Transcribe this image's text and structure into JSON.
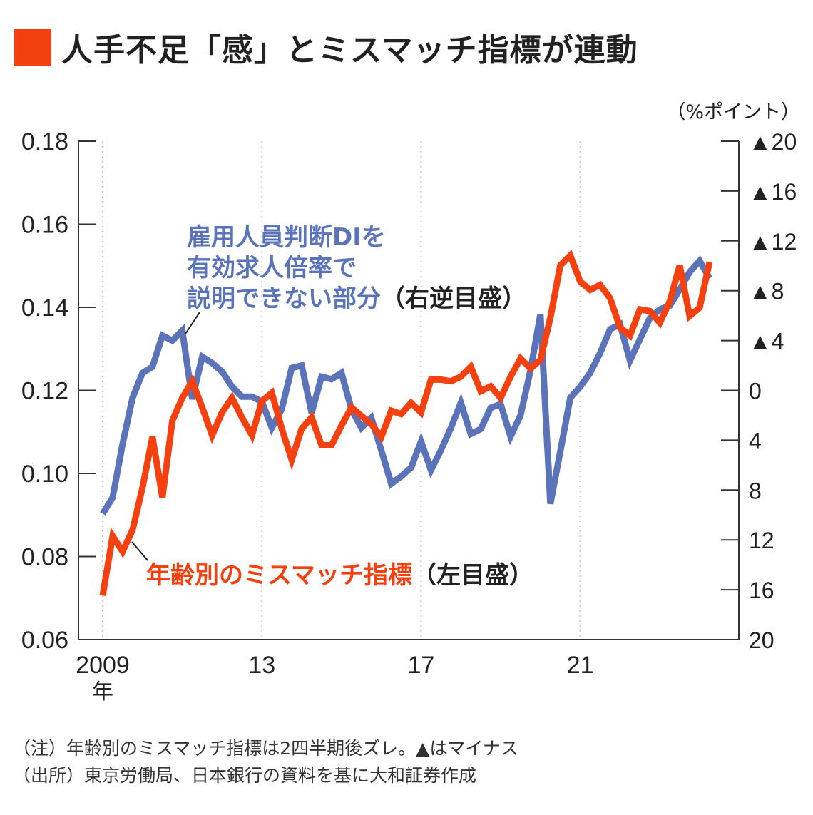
{
  "title": "人手不足「感」とミスマッチ指標が連動",
  "accent_color": "#f2400f",
  "chart_data": {
    "type": "line",
    "title": "人手不足「感」とミスマッチ指標が連動",
    "x_start": 2009,
    "x_step": 0.25,
    "xticks": [
      {
        "value": 2009,
        "label": "2009",
        "sub": "年"
      },
      {
        "value": 2013,
        "label": "13"
      },
      {
        "value": 2017,
        "label": "17"
      },
      {
        "value": 2021,
        "label": "21"
      }
    ],
    "left_axis": {
      "range": [
        0.06,
        0.18
      ],
      "ticks": [
        0.06,
        0.08,
        0.1,
        0.12,
        0.14,
        0.16,
        0.18
      ],
      "labels": [
        "0.06",
        "0.08",
        "0.10",
        "0.12",
        "0.14",
        "0.16",
        "0.18"
      ]
    },
    "right_axis": {
      "unit": "（%ポイント）",
      "inverted": true,
      "range": [
        -20,
        20
      ],
      "ticks": [
        -20,
        -16,
        -12,
        -8,
        -4,
        0,
        4,
        8,
        12,
        16,
        20
      ],
      "labels": [
        "▲20",
        "▲16",
        "▲12",
        "▲8",
        "▲4",
        "0",
        "4",
        "8",
        "12",
        "16",
        "20"
      ]
    },
    "grid": "vertical dotted at x ticks",
    "series": [
      {
        "name": "年齢別のミスマッチ指標",
        "label_main": "年齢別のミスマッチ指標",
        "label_suffix": "（左目盛）",
        "axis": "left",
        "color": "#f5400f",
        "values": [
          0.0706,
          0.0849,
          0.0812,
          0.0864,
          0.0966,
          0.1088,
          0.0942,
          0.1127,
          0.1182,
          0.1222,
          0.1159,
          0.1092,
          0.1147,
          0.1182,
          0.1135,
          0.1092,
          0.1174,
          0.1194,
          0.1108,
          0.1033,
          0.1108,
          0.1135,
          0.1068,
          0.1068,
          0.1115,
          0.1159,
          0.1139,
          0.1119,
          0.1088,
          0.1151,
          0.1143,
          0.117,
          0.1147,
          0.1226,
          0.1226,
          0.1222,
          0.1233,
          0.1257,
          0.1198,
          0.121,
          0.1182,
          0.1233,
          0.1277,
          0.1253,
          0.1273,
          0.1375,
          0.1501,
          0.1525,
          0.1462,
          0.1442,
          0.1454,
          0.1422,
          0.1351,
          0.1332,
          0.1395,
          0.1391,
          0.1363,
          0.1414,
          0.1501,
          0.1379,
          0.1399,
          0.1509
        ]
      },
      {
        "name": "雇用人員判断DIを有効求人倍率で説明できない部分",
        "label_lines": [
          "雇用人員判断DIを",
          "有効求人倍率で",
          "説明できない部分"
        ],
        "label_suffix": "（右逆目盛）",
        "axis": "right",
        "color": "#5b73b9",
        "values": [
          9.9,
          8.6,
          4.3,
          0.6,
          -1.4,
          -1.9,
          -4.4,
          -4.0,
          -4.8,
          0.7,
          -2.7,
          -2.2,
          -1.5,
          -0.3,
          0.5,
          0.5,
          0.9,
          3.0,
          1.5,
          -1.8,
          -2.0,
          1.8,
          -1.1,
          -0.9,
          -1.4,
          1.5,
          3.0,
          2.2,
          4.8,
          7.5,
          6.9,
          6.2,
          4.1,
          6.4,
          4.8,
          3.0,
          1.0,
          3.5,
          3.1,
          1.4,
          1.1,
          3.7,
          2.0,
          -1.6,
          -6.1,
          9.1,
          4.9,
          0.6,
          -0.3,
          -1.4,
          -3.0,
          -4.9,
          -5.3,
          -2.4,
          -4.1,
          -5.8,
          -6.5,
          -6.8,
          -8.1,
          -9.5,
          -10.4,
          -9.0
        ]
      }
    ]
  },
  "notes": [
    "（注）年齢別のミスマッチ指標は2四半期後ズレ。▲はマイナス",
    "（出所）東京労働局、日本銀行の資料を基に大和証券作成"
  ]
}
